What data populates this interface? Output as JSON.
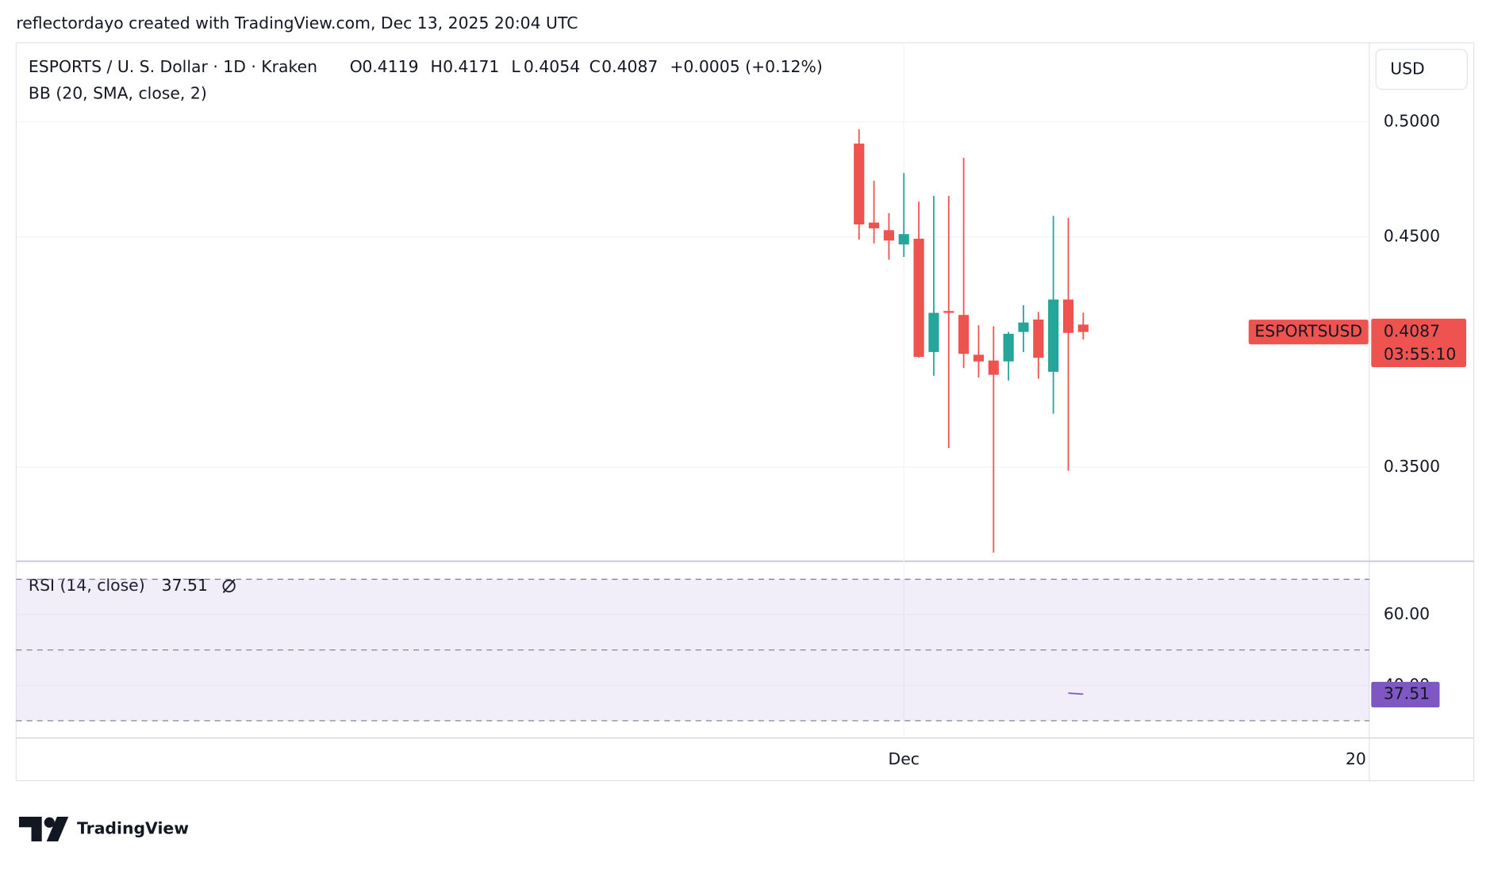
{
  "header": "reflectordayo created with TradingView.com, Dec 13, 2025 20:04 UTC",
  "chart_data": [
    {
      "type": "candlestick",
      "title": "ESPORTS / U. S. Dollar · 1D · Kraken",
      "legend_keys": [
        "O",
        "H",
        "L",
        "C"
      ],
      "change": "+0.0005 (+0.12%)",
      "indicator": "BB (20, SMA, close, 2)",
      "currency": "USD",
      "countdown": "03:55:10",
      "categories": [
        null,
        null,
        null,
        "Dec",
        null,
        null,
        null,
        null,
        null,
        null,
        null,
        null,
        null,
        null,
        null,
        null
      ],
      "x_edge_label": "20",
      "series": [
        {
          "name": "ESPORTSUSD",
          "up_color": "#26a69a",
          "down_color": "#ef5350",
          "open": [
            0.4905,
            0.4562,
            0.4529,
            0.4467,
            0.4492,
            0.4,
            0.4178,
            0.4161,
            0.3988,
            0.3963,
            0.3959,
            0.4087,
            0.4141,
            0.3914,
            0.4228,
            0.4119
          ],
          "high": [
            0.4967,
            0.4744,
            0.4603,
            0.4777,
            0.4653,
            0.4678,
            0.4678,
            0.4843,
            0.4116,
            0.4112,
            0.4087,
            0.4203,
            0.4174,
            0.4591,
            0.4583,
            0.4171
          ],
          "low": [
            0.4488,
            0.4471,
            0.4401,
            0.4413,
            0.3975,
            0.3897,
            0.3583,
            0.393,
            0.3889,
            0.3129,
            0.3876,
            0.4,
            0.3884,
            0.3732,
            0.3484,
            0.4054
          ],
          "close": [
            0.4554,
            0.4537,
            0.4484,
            0.4512,
            0.3979,
            0.417,
            0.417,
            0.3992,
            0.3959,
            0.3901,
            0.4079,
            0.4128,
            0.3975,
            0.4228,
            0.4083,
            0.4087
          ]
        }
      ],
      "ylim": [
        0.3091,
        0.5343
      ],
      "yticks": [
        {
          "value": 0.35,
          "label": "0.3500"
        },
        {
          "value": 0.45,
          "label": "0.4500"
        },
        {
          "value": 0.5,
          "label": "0.5000"
        }
      ],
      "grid": true
    },
    {
      "type": "line",
      "title": "RSI (14, close)",
      "color": "#7e57c2",
      "values": [
        null,
        null,
        null,
        null,
        null,
        null,
        null,
        null,
        null,
        null,
        null,
        null,
        null,
        null,
        37.8,
        37.51
      ],
      "ylim": [
        25.4,
        74.8
      ],
      "yticks": [
        {
          "value": 40,
          "label": "40.00"
        },
        {
          "value": 60,
          "label": "60.00"
        }
      ],
      "bands": [
        30,
        50,
        70
      ]
    }
  ],
  "footer": {
    "brand": "TradingView"
  }
}
